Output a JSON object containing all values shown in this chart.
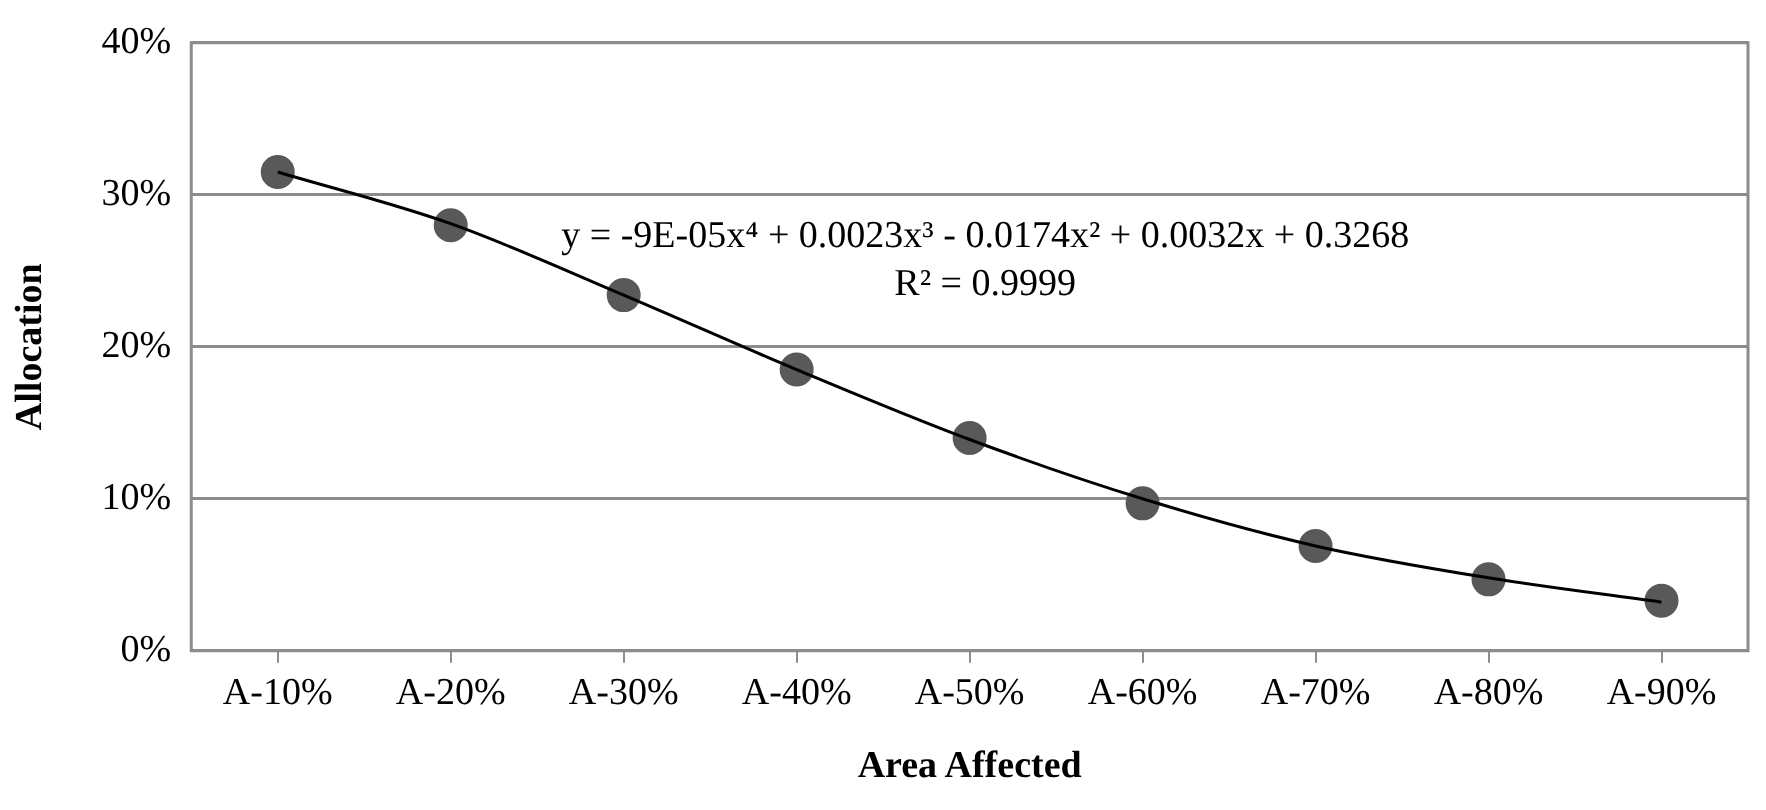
{
  "chart_data": {
    "type": "scatter",
    "xlabel": "Area Affected",
    "ylabel": "Allocation",
    "categories": [
      "A-10%",
      "A-20%",
      "A-30%",
      "A-40%",
      "A-50%",
      "A-60%",
      "A-70%",
      "A-80%",
      "A-90%"
    ],
    "series": [
      {
        "type": "scatter",
        "color": "#595959",
        "marker": "circle",
        "values": [
          31.5,
          28.0,
          23.4,
          18.5,
          14.0,
          9.7,
          6.9,
          4.7,
          3.3
        ]
      },
      {
        "type": "line",
        "color": "#000000",
        "marker": "none",
        "values": [
          31.5,
          28.1,
          23.4,
          18.5,
          13.9,
          10.0,
          6.9,
          4.8,
          3.2
        ]
      }
    ],
    "ylim": [
      0,
      40
    ],
    "yticks": [
      {
        "value": 0,
        "label": "0%"
      },
      {
        "value": 10,
        "label": "10%"
      },
      {
        "value": 20,
        "label": "20%"
      },
      {
        "value": 30,
        "label": "30%"
      },
      {
        "value": 40,
        "label": "40%"
      }
    ],
    "grid": "y",
    "legend": false,
    "annotations": [
      "y = -9E-05x⁴ + 0.0023x³ - 0.0174x² + 0.0032x + 0.3268",
      "R² = 0.9999"
    ]
  }
}
